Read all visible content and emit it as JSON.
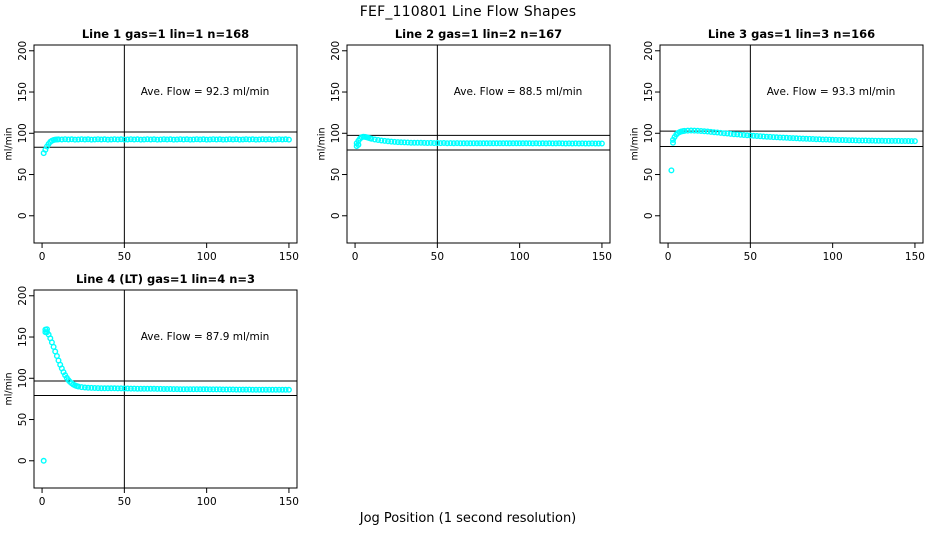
{
  "title": "FEF_110801  Line Flow Shapes",
  "xlabel": "Jog Position (1 second resolution)",
  "point_color": "#00FFFF",
  "line_color": "#000000",
  "chart_data": [
    {
      "type": "scatter",
      "title": "Line 1 gas=1 lin=1 n=168",
      "ave_flow": 92.3,
      "ave_flow_text": "Ave. Flow =  92.3  ml/min",
      "n": 168,
      "ylabel": "ml/min",
      "x_ticks": [
        0,
        50,
        100,
        150
      ],
      "y_ticks": [
        0,
        50,
        100,
        150,
        200
      ],
      "xlim": [
        -4.9,
        154.9
      ],
      "ylim": [
        -33,
        207
      ],
      "ref_h": [
        101.5,
        83.1
      ],
      "ref_v": 50,
      "legend": "none",
      "points": [
        [
          1,
          76
        ],
        [
          2,
          80
        ],
        [
          3,
          84
        ],
        [
          4,
          87
        ],
        [
          5,
          89.5
        ],
        [
          6,
          91
        ],
        [
          7,
          91.9
        ],
        [
          8,
          92.3
        ],
        [
          9,
          92.5
        ],
        [
          10,
          92.6
        ],
        [
          12,
          92.5
        ],
        [
          14,
          92.8
        ],
        [
          16,
          92.4
        ],
        [
          18,
          92.7
        ],
        [
          20,
          92.3
        ],
        [
          22,
          92.5
        ],
        [
          24,
          92.8
        ],
        [
          26,
          92.4
        ],
        [
          28,
          92.7
        ],
        [
          30,
          92.3
        ],
        [
          32,
          92.5
        ],
        [
          34,
          92.8
        ],
        [
          36,
          92.4
        ],
        [
          38,
          92.7
        ],
        [
          40,
          92.3
        ],
        [
          42,
          92.5
        ],
        [
          44,
          92.8
        ],
        [
          46,
          92.4
        ],
        [
          48,
          92.7
        ],
        [
          50,
          92.3
        ],
        [
          52,
          92.5
        ],
        [
          54,
          92.8
        ],
        [
          56,
          92.4
        ],
        [
          58,
          92.7
        ],
        [
          60,
          92.3
        ],
        [
          62,
          92.5
        ],
        [
          64,
          92.8
        ],
        [
          66,
          92.4
        ],
        [
          68,
          92.7
        ],
        [
          70,
          92.3
        ],
        [
          72,
          92.5
        ],
        [
          74,
          92.8
        ],
        [
          76,
          92.4
        ],
        [
          78,
          92.7
        ],
        [
          80,
          92.3
        ],
        [
          82,
          92.5
        ],
        [
          84,
          92.8
        ],
        [
          86,
          92.4
        ],
        [
          88,
          92.7
        ],
        [
          90,
          92.3
        ],
        [
          92,
          92.5
        ],
        [
          94,
          92.8
        ],
        [
          96,
          92.4
        ],
        [
          98,
          92.7
        ],
        [
          100,
          92.3
        ],
        [
          102,
          92.5
        ],
        [
          104,
          92.8
        ],
        [
          106,
          92.4
        ],
        [
          108,
          92.7
        ],
        [
          110,
          92.3
        ],
        [
          112,
          92.5
        ],
        [
          114,
          92.8
        ],
        [
          116,
          92.4
        ],
        [
          118,
          92.7
        ],
        [
          120,
          92.3
        ],
        [
          122,
          92.5
        ],
        [
          124,
          92.8
        ],
        [
          126,
          92.4
        ],
        [
          128,
          92.7
        ],
        [
          130,
          92.3
        ],
        [
          132,
          92.5
        ],
        [
          134,
          92.8
        ],
        [
          136,
          92.4
        ],
        [
          138,
          92.7
        ],
        [
          140,
          92.3
        ],
        [
          142,
          92.5
        ],
        [
          144,
          92.8
        ],
        [
          146,
          92.4
        ],
        [
          148,
          92.7
        ],
        [
          150,
          92.3
        ]
      ]
    },
    {
      "type": "scatter",
      "title": "Line 2 gas=1 lin=2 n=167",
      "ave_flow": 88.5,
      "ave_flow_text": "Ave. Flow =  88.5  ml/min",
      "n": 167,
      "ylabel": "ml/min",
      "x_ticks": [
        0,
        50,
        100,
        150
      ],
      "y_ticks": [
        0,
        50,
        100,
        150,
        200
      ],
      "xlim": [
        -4.9,
        154.9
      ],
      "ylim": [
        -33,
        207
      ],
      "ref_h": [
        97.4,
        79.7
      ],
      "ref_v": 50,
      "legend": "none",
      "points": [
        [
          1,
          84.5
        ],
        [
          1,
          88
        ],
        [
          2,
          91
        ],
        [
          2,
          86
        ],
        [
          3,
          93.5
        ],
        [
          4,
          95.2
        ],
        [
          5,
          95.8
        ],
        [
          6,
          95.6
        ],
        [
          7,
          95.1
        ],
        [
          8,
          94.5
        ],
        [
          9,
          94
        ],
        [
          10,
          93.4
        ],
        [
          12,
          92.5
        ],
        [
          14,
          91.8
        ],
        [
          16,
          91.2
        ],
        [
          18,
          90.7
        ],
        [
          20,
          90.3
        ],
        [
          22,
          89.9
        ],
        [
          24,
          89.6
        ],
        [
          26,
          89.3
        ],
        [
          28,
          89.1
        ],
        [
          30,
          88.9
        ],
        [
          32,
          88.8
        ],
        [
          34,
          88.6
        ],
        [
          36,
          88.5
        ],
        [
          38,
          88.4
        ],
        [
          40,
          88.4
        ],
        [
          42,
          88.3
        ],
        [
          44,
          88.2
        ],
        [
          46,
          88.3
        ],
        [
          48,
          88.1
        ],
        [
          50,
          88.2
        ],
        [
          52,
          88.1
        ],
        [
          54,
          88.2
        ],
        [
          56,
          88.0
        ],
        [
          58,
          88.1
        ],
        [
          60,
          88.0
        ],
        [
          62,
          88.1
        ],
        [
          64,
          88.0
        ],
        [
          66,
          87.9
        ],
        [
          68,
          88.0
        ],
        [
          70,
          87.9
        ],
        [
          72,
          88.0
        ],
        [
          74,
          87.9
        ],
        [
          76,
          88.0
        ],
        [
          78,
          87.9
        ],
        [
          80,
          87.9
        ],
        [
          82,
          88.0
        ],
        [
          84,
          87.9
        ],
        [
          86,
          87.8
        ],
        [
          88,
          87.9
        ],
        [
          90,
          87.8
        ],
        [
          92,
          87.9
        ],
        [
          94,
          87.8
        ],
        [
          96,
          87.9
        ],
        [
          98,
          87.8
        ],
        [
          100,
          87.8
        ],
        [
          102,
          87.9
        ],
        [
          104,
          87.8
        ],
        [
          106,
          87.8
        ],
        [
          108,
          87.7
        ],
        [
          110,
          87.8
        ],
        [
          112,
          87.7
        ],
        [
          114,
          87.8
        ],
        [
          116,
          87.7
        ],
        [
          118,
          87.8
        ],
        [
          120,
          87.7
        ],
        [
          122,
          87.7
        ],
        [
          124,
          87.8
        ],
        [
          126,
          87.7
        ],
        [
          128,
          87.6
        ],
        [
          130,
          87.7
        ],
        [
          132,
          87.6
        ],
        [
          134,
          87.7
        ],
        [
          136,
          87.6
        ],
        [
          138,
          87.7
        ],
        [
          140,
          87.6
        ],
        [
          142,
          87.6
        ],
        [
          144,
          87.7
        ],
        [
          146,
          87.6
        ],
        [
          148,
          87.6
        ],
        [
          150,
          87.6
        ]
      ]
    },
    {
      "type": "scatter",
      "title": "Line 3 gas=1 lin=3 n=166",
      "ave_flow": 93.3,
      "ave_flow_text": "Ave. Flow =  93.3  ml/min",
      "n": 166,
      "ylabel": "ml/min",
      "x_ticks": [
        0,
        50,
        100,
        150
      ],
      "y_ticks": [
        0,
        50,
        100,
        150,
        200
      ],
      "xlim": [
        -4.9,
        154.9
      ],
      "ylim": [
        -33,
        207
      ],
      "ref_h": [
        102.6,
        84.0
      ],
      "ref_v": 50,
      "legend": "none",
      "points": [
        [
          2,
          55
        ],
        [
          3,
          88.5
        ],
        [
          3,
          92
        ],
        [
          4,
          95.5
        ],
        [
          5,
          98.5
        ],
        [
          6,
          100.3
        ],
        [
          7,
          101.4
        ],
        [
          8,
          102.1
        ],
        [
          9,
          102.6
        ],
        [
          10,
          102.9
        ],
        [
          12,
          103.2
        ],
        [
          14,
          103.4
        ],
        [
          16,
          103.3
        ],
        [
          18,
          103.1
        ],
        [
          20,
          102.8
        ],
        [
          22,
          102.4
        ],
        [
          24,
          102.1
        ],
        [
          26,
          101.7
        ],
        [
          28,
          101.3
        ],
        [
          30,
          100.9
        ],
        [
          32,
          100.5
        ],
        [
          34,
          100.1
        ],
        [
          36,
          99.7
        ],
        [
          38,
          99.3
        ],
        [
          40,
          98.9
        ],
        [
          42,
          98.6
        ],
        [
          44,
          98.2
        ],
        [
          46,
          97.9
        ],
        [
          48,
          97.6
        ],
        [
          50,
          97.3
        ],
        [
          52,
          97.0
        ],
        [
          54,
          96.7
        ],
        [
          56,
          96.4
        ],
        [
          58,
          96.1
        ],
        [
          60,
          95.9
        ],
        [
          62,
          95.6
        ],
        [
          64,
          95.4
        ],
        [
          66,
          95.1
        ],
        [
          68,
          94.9
        ],
        [
          70,
          94.7
        ],
        [
          72,
          94.5
        ],
        [
          74,
          94.3
        ],
        [
          76,
          94.1
        ],
        [
          78,
          93.9
        ],
        [
          80,
          93.7
        ],
        [
          82,
          93.5
        ],
        [
          84,
          93.3
        ],
        [
          86,
          93.2
        ],
        [
          88,
          93.0
        ],
        [
          90,
          92.8
        ],
        [
          92,
          92.7
        ],
        [
          94,
          92.5
        ],
        [
          96,
          92.4
        ],
        [
          98,
          92.3
        ],
        [
          100,
          92.1
        ],
        [
          102,
          92.0
        ],
        [
          104,
          91.9
        ],
        [
          106,
          91.8
        ],
        [
          108,
          91.7
        ],
        [
          110,
          91.6
        ],
        [
          112,
          91.5
        ],
        [
          114,
          91.4
        ],
        [
          116,
          91.3
        ],
        [
          118,
          91.3
        ],
        [
          120,
          91.2
        ],
        [
          122,
          91.1
        ],
        [
          124,
          91.1
        ],
        [
          126,
          91.0
        ],
        [
          128,
          90.9
        ],
        [
          130,
          90.9
        ],
        [
          132,
          90.8
        ],
        [
          134,
          90.8
        ],
        [
          136,
          90.7
        ],
        [
          138,
          90.7
        ],
        [
          140,
          90.7
        ],
        [
          142,
          90.6
        ],
        [
          144,
          90.6
        ],
        [
          146,
          90.6
        ],
        [
          148,
          90.5
        ],
        [
          150,
          90.5
        ]
      ]
    },
    {
      "type": "scatter",
      "title": "Line 4 (LT) gas=1 lin=4 n=3",
      "ave_flow": 87.9,
      "ave_flow_text": "Ave. Flow =  87.9  ml/min",
      "n": 3,
      "ylabel": "ml/min",
      "x_ticks": [
        0,
        50,
        100,
        150
      ],
      "y_ticks": [
        0,
        50,
        100,
        150,
        200
      ],
      "xlim": [
        -4.9,
        154.9
      ],
      "ylim": [
        -33,
        207
      ],
      "ref_h": [
        96.7,
        79.1
      ],
      "ref_v": 50,
      "legend": "none",
      "points": [
        [
          1,
          0
        ],
        [
          2,
          156
        ],
        [
          2,
          159
        ],
        [
          3,
          159.5
        ],
        [
          3,
          156
        ],
        [
          4,
          153
        ],
        [
          5,
          148.5
        ],
        [
          6,
          143.5
        ],
        [
          7,
          138
        ],
        [
          8,
          132.5
        ],
        [
          9,
          127
        ],
        [
          10,
          121.5
        ],
        [
          11,
          116.5
        ],
        [
          12,
          112
        ],
        [
          13,
          107.5
        ],
        [
          14,
          103.8
        ],
        [
          15,
          100.5
        ],
        [
          16,
          97.8
        ],
        [
          17,
          95.6
        ],
        [
          18,
          93.9
        ],
        [
          19,
          92.5
        ],
        [
          20,
          91.4
        ],
        [
          21,
          90.6
        ],
        [
          22,
          90.0
        ],
        [
          24,
          89.3
        ],
        [
          26,
          88.8
        ],
        [
          28,
          88.5
        ],
        [
          30,
          88.3
        ],
        [
          32,
          88.2
        ],
        [
          34,
          88.1
        ],
        [
          36,
          88.0
        ],
        [
          38,
          87.9
        ],
        [
          40,
          87.9
        ],
        [
          42,
          87.8
        ],
        [
          44,
          87.8
        ],
        [
          46,
          87.7
        ],
        [
          48,
          87.7
        ],
        [
          50,
          87.6
        ],
        [
          52,
          87.6
        ],
        [
          54,
          87.5
        ],
        [
          56,
          87.5
        ],
        [
          58,
          87.4
        ],
        [
          60,
          87.4
        ],
        [
          62,
          87.3
        ],
        [
          64,
          87.3
        ],
        [
          66,
          87.2
        ],
        [
          68,
          87.2
        ],
        [
          70,
          87.1
        ],
        [
          72,
          87.1
        ],
        [
          74,
          87.0
        ],
        [
          76,
          87.0
        ],
        [
          78,
          87.0
        ],
        [
          80,
          86.9
        ],
        [
          82,
          86.9
        ],
        [
          84,
          86.8
        ],
        [
          86,
          86.8
        ],
        [
          88,
          86.8
        ],
        [
          90,
          86.7
        ],
        [
          92,
          86.7
        ],
        [
          94,
          86.7
        ],
        [
          96,
          86.6
        ],
        [
          98,
          86.6
        ],
        [
          100,
          86.6
        ],
        [
          102,
          86.5
        ],
        [
          104,
          86.5
        ],
        [
          106,
          86.5
        ],
        [
          108,
          86.5
        ],
        [
          110,
          86.4
        ],
        [
          112,
          86.4
        ],
        [
          114,
          86.4
        ],
        [
          116,
          86.4
        ],
        [
          118,
          86.3
        ],
        [
          120,
          86.3
        ],
        [
          122,
          86.3
        ],
        [
          124,
          86.3
        ],
        [
          126,
          86.3
        ],
        [
          128,
          86.2
        ],
        [
          130,
          86.2
        ],
        [
          132,
          86.2
        ],
        [
          134,
          86.2
        ],
        [
          136,
          86.2
        ],
        [
          138,
          86.1
        ],
        [
          140,
          86.1
        ],
        [
          142,
          86.1
        ],
        [
          144,
          86.1
        ],
        [
          146,
          86.1
        ],
        [
          148,
          86.0
        ],
        [
          150,
          86.0
        ]
      ]
    }
  ]
}
